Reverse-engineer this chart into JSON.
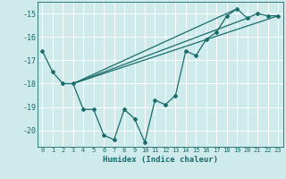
{
  "xlabel": "Humidex (Indice chaleur)",
  "background_color": "#ceeaea",
  "grid_color": "#ffffff",
  "line_color": "#1a6b6b",
  "xlim": [
    -0.5,
    23.5
  ],
  "ylim": [
    -20.7,
    -14.5
  ],
  "yticks": [
    -20,
    -19,
    -18,
    -17,
    -16,
    -15
  ],
  "xticks": [
    0,
    1,
    2,
    3,
    4,
    5,
    6,
    7,
    8,
    9,
    10,
    11,
    12,
    13,
    14,
    15,
    16,
    17,
    18,
    19,
    20,
    21,
    22,
    23
  ],
  "series1_x": [
    0,
    1,
    2,
    3,
    4,
    5,
    6,
    7,
    8,
    9,
    10,
    11,
    12,
    13,
    14,
    15,
    16,
    17,
    18,
    19,
    20,
    21,
    22,
    23
  ],
  "series1_y": [
    -16.6,
    -17.5,
    -18.0,
    -18.0,
    -19.1,
    -19.1,
    -20.2,
    -20.4,
    -19.1,
    -19.5,
    -20.5,
    -18.7,
    -18.9,
    -18.5,
    -16.6,
    -16.8,
    -16.1,
    -15.8,
    -15.1,
    -14.8,
    -15.2,
    -15.0,
    -15.1,
    -15.1
  ],
  "series2_x": [
    3,
    23
  ],
  "series2_y": [
    -18.0,
    -15.1
  ],
  "series3_x": [
    3,
    19
  ],
  "series3_y": [
    -18.0,
    -14.8
  ],
  "series4_x": [
    3,
    20
  ],
  "series4_y": [
    -18.0,
    -15.2
  ]
}
